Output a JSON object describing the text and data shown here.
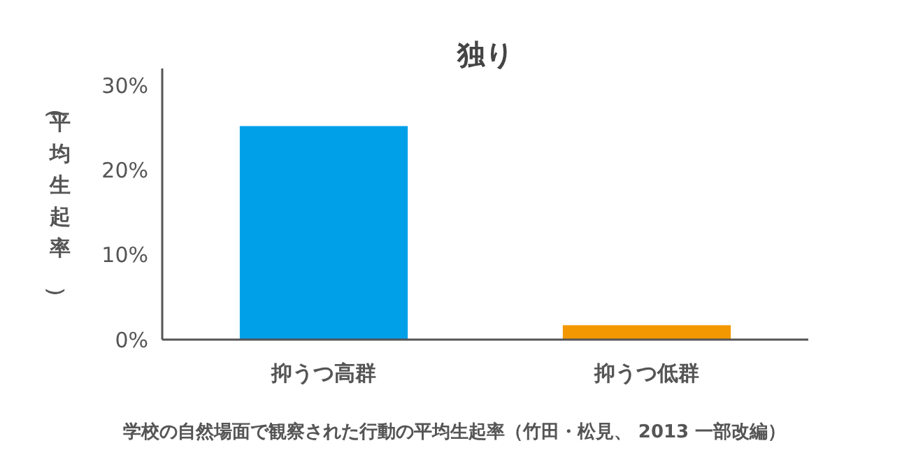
{
  "chart_data": {
    "type": "bar",
    "title": "独り",
    "ylabel": "（平均生起率）",
    "categories": [
      "抑うつ高群",
      "抑うつ低群"
    ],
    "values": [
      25.2,
      1.7
    ],
    "colors": [
      "#00a0e9",
      "#f39800"
    ],
    "ylim": [
      0,
      32
    ],
    "yticks": [
      {
        "value": 0,
        "label": "0%"
      },
      {
        "value": 10,
        "label": "10%"
      },
      {
        "value": 20,
        "label": "20%"
      },
      {
        "value": 30,
        "label": "30%"
      }
    ],
    "grid": false,
    "annotations": [
      "学校の自然場面で観察された行動の平均生起率（竹田・松見、 2013 一部改編）"
    ]
  }
}
